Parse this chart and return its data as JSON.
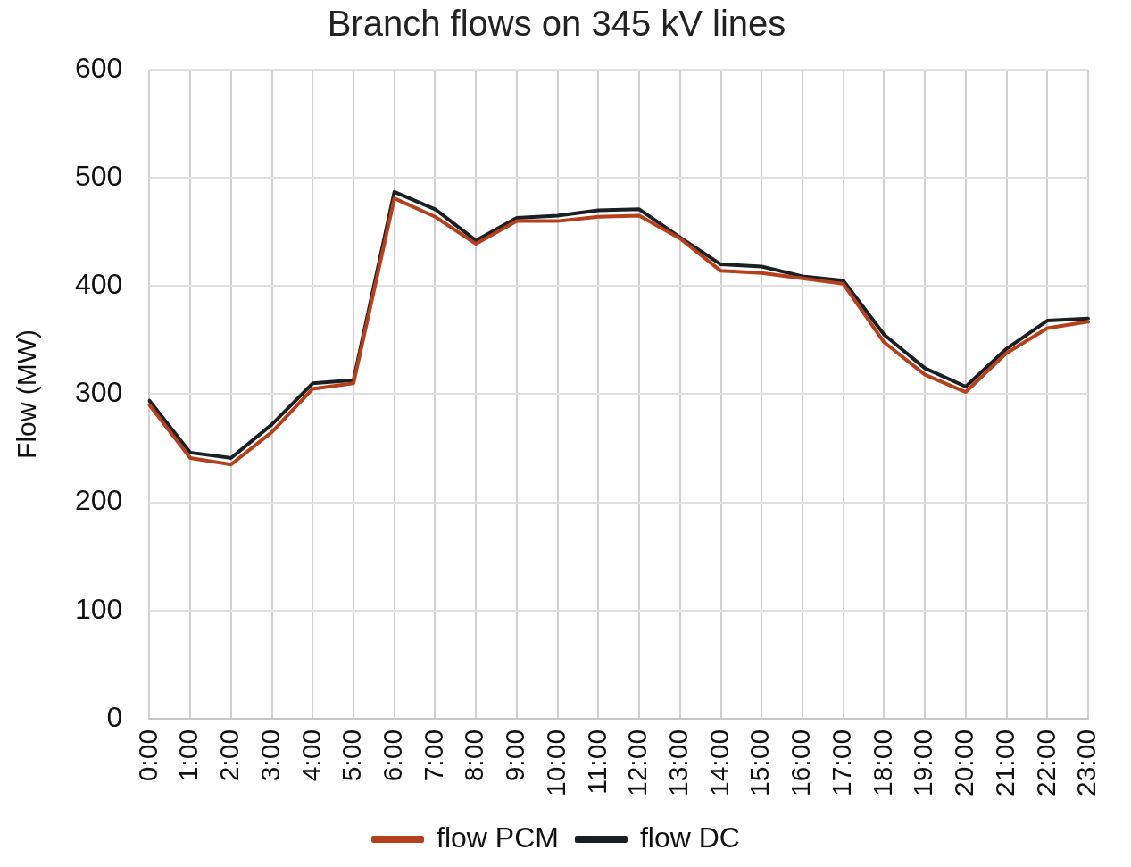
{
  "chart_data": {
    "type": "line",
    "title": "Branch flows on 345 kV lines",
    "ylabel": "Flow (MW)",
    "categories": [
      "0:00",
      "1:00",
      "2:00",
      "3:00",
      "4:00",
      "5:00",
      "6:00",
      "7:00",
      "8:00",
      "9:00",
      "10:00",
      "11:00",
      "12:00",
      "13:00",
      "14:00",
      "15:00",
      "16:00",
      "17:00",
      "18:00",
      "19:00",
      "20:00",
      "21:00",
      "22:00",
      "23:00"
    ],
    "series": [
      {
        "name": "flow PCM",
        "color": "#b5401b",
        "values": [
          290,
          241,
          235,
          265,
          305,
          310,
          481,
          464,
          439,
          460,
          460,
          464,
          465,
          444,
          414,
          412,
          407,
          402,
          348,
          318,
          302,
          338,
          361,
          367
        ]
      },
      {
        "name": "flow DC",
        "color": "#1a1f24",
        "values": [
          294,
          246,
          241,
          272,
          310,
          313,
          487,
          471,
          442,
          463,
          465,
          470,
          471,
          445,
          420,
          418,
          409,
          405,
          355,
          324,
          307,
          342,
          368,
          370
        ]
      }
    ],
    "ylim": [
      0,
      600
    ],
    "yticks": [
      0,
      100,
      200,
      300,
      400,
      500,
      600
    ],
    "grid": true,
    "legend": "bottom",
    "marker": "none",
    "line_style": "solid"
  }
}
